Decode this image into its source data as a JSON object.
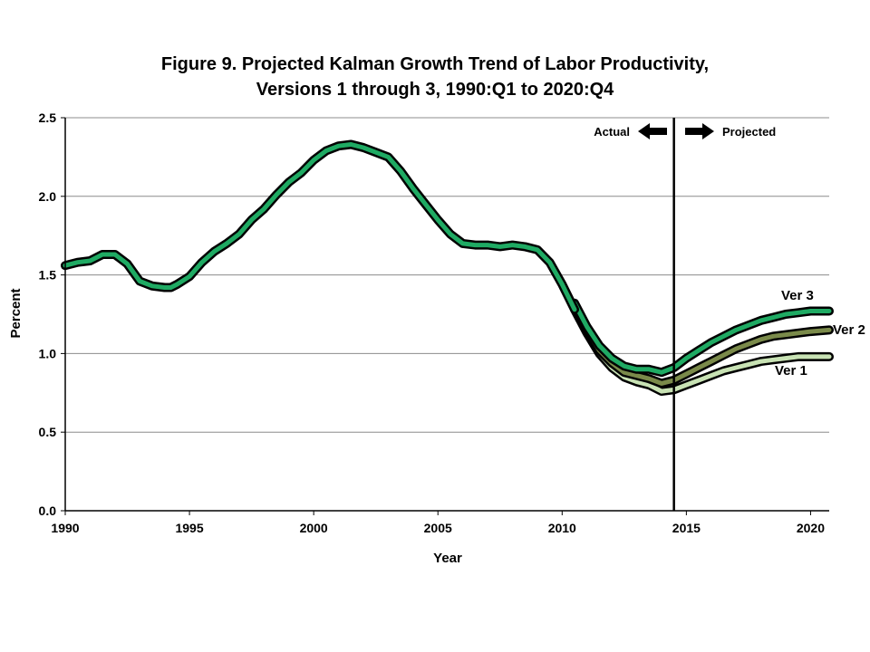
{
  "chart_data": {
    "type": "line",
    "title_line1": "Figure 9. Projected Kalman Growth Trend of Labor Productivity,",
    "title_line2": "Versions 1 through 3, 1990:Q1 to 2020:Q4",
    "xlabel": "Year",
    "ylabel": "Percent",
    "xlim": [
      1990,
      2020.75
    ],
    "ylim": [
      0,
      2.5
    ],
    "x_ticks": [
      "1990",
      "1995",
      "2000",
      "2005",
      "2010",
      "2015",
      "2020"
    ],
    "y_ticks": [
      "0.0",
      "0.5",
      "1.0",
      "1.5",
      "2.0",
      "2.5"
    ],
    "grid": true,
    "divider_x": 2014.5,
    "annotations": {
      "actual": "Actual",
      "projected": "Projected"
    },
    "colors": {
      "outline": "#000000",
      "ver1": "#c8e2b4",
      "ver2": "#7a8a4a",
      "ver3": "#1faa63"
    },
    "common": {
      "x": [
        1990,
        1990.5,
        1991,
        1991.5,
        1992,
        1992.5,
        1993,
        1993.5,
        1994,
        1994.25,
        1994.5,
        1995,
        1995.5,
        1996,
        1996.5,
        1997,
        1997.5,
        1998,
        1998.5,
        1999,
        1999.5,
        2000,
        2000.5,
        2001,
        2001.5,
        2002,
        2002.5,
        2003,
        2003.5,
        2004,
        2004.5,
        2005,
        2005.5,
        2006,
        2006.5,
        2007,
        2007.5,
        2008,
        2008.5,
        2009,
        2009.5,
        2010,
        2010.5
      ],
      "y": [
        1.56,
        1.58,
        1.59,
        1.63,
        1.63,
        1.57,
        1.46,
        1.43,
        1.42,
        1.42,
        1.44,
        1.49,
        1.58,
        1.65,
        1.7,
        1.76,
        1.85,
        1.92,
        2.01,
        2.09,
        2.15,
        2.23,
        2.29,
        2.32,
        2.33,
        2.31,
        2.28,
        2.25,
        2.16,
        2.05,
        1.95,
        1.85,
        1.76,
        1.7,
        1.69,
        1.69,
        1.68,
        1.69,
        1.68,
        1.66,
        1.58,
        1.44,
        1.28
      ]
    },
    "series": [
      {
        "name": "Ver 1",
        "x": [
          2010.5,
          2011,
          2011.5,
          2012,
          2012.5,
          2013,
          2013.5,
          2014,
          2014.5,
          2015,
          2015.5,
          2016,
          2016.5,
          2017,
          2017.5,
          2018,
          2018.5,
          2019,
          2019.5,
          2020,
          2020.75
        ],
        "y": [
          1.28,
          1.13,
          1.0,
          0.91,
          0.85,
          0.82,
          0.8,
          0.76,
          0.77,
          0.8,
          0.83,
          0.86,
          0.89,
          0.91,
          0.93,
          0.95,
          0.96,
          0.97,
          0.98,
          0.98,
          0.98
        ]
      },
      {
        "name": "Ver 2",
        "x": [
          2010.5,
          2011,
          2011.5,
          2012,
          2012.5,
          2013,
          2013.5,
          2014,
          2014.5,
          2015,
          2015.5,
          2016,
          2016.5,
          2017,
          2017.5,
          2018,
          2018.5,
          2019,
          2019.5,
          2020,
          2020.75
        ],
        "y": [
          1.3,
          1.15,
          1.02,
          0.94,
          0.88,
          0.86,
          0.84,
          0.81,
          0.83,
          0.87,
          0.91,
          0.95,
          0.99,
          1.03,
          1.06,
          1.09,
          1.11,
          1.12,
          1.13,
          1.14,
          1.15
        ]
      },
      {
        "name": "Ver 3",
        "x": [
          2010.5,
          2011,
          2011.5,
          2012,
          2012.5,
          2013,
          2013.5,
          2014,
          2014.5,
          2015,
          2015.5,
          2016,
          2016.5,
          2017,
          2017.5,
          2018,
          2018.5,
          2019,
          2019.5,
          2020,
          2020.75
        ],
        "y": [
          1.32,
          1.17,
          1.05,
          0.97,
          0.92,
          0.9,
          0.9,
          0.88,
          0.91,
          0.97,
          1.02,
          1.07,
          1.11,
          1.15,
          1.18,
          1.21,
          1.23,
          1.25,
          1.26,
          1.27,
          1.27
        ]
      }
    ]
  }
}
